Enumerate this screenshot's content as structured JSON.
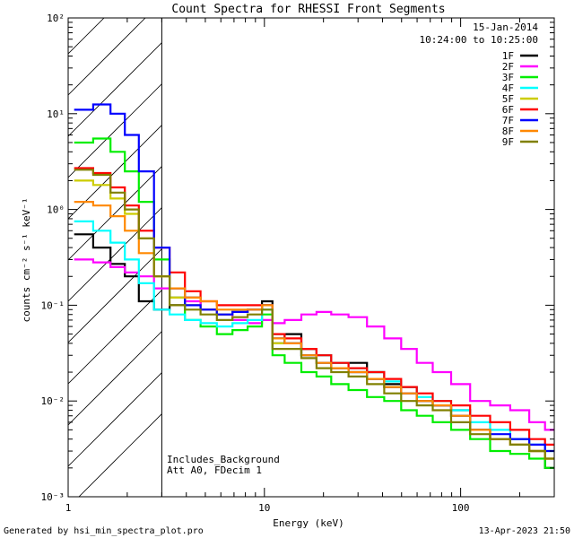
{
  "chart_data": {
    "type": "line",
    "title": "Count Spectra for RHESSI Front Segments",
    "xlabel": "Energy (keV)",
    "ylabel": "counts cm⁻² s⁻¹ keV⁻¹",
    "xscale": "log",
    "yscale": "log",
    "xlim": [
      1,
      300
    ],
    "ylim": [
      0.001,
      100
    ],
    "x_ticks": [
      {
        "value": 1,
        "label": "1"
      },
      {
        "value": 10,
        "label": "10"
      },
      {
        "value": 100,
        "label": "100"
      }
    ],
    "y_ticks": [
      {
        "value": 0.001,
        "label": "10⁻³"
      },
      {
        "value": 0.01,
        "label": "10⁻²"
      },
      {
        "value": 0.1,
        "label": "10⁻¹"
      },
      {
        "value": 1,
        "label": "10⁰"
      },
      {
        "value": 10,
        "label": "10¹"
      },
      {
        "value": 100,
        "label": "10²"
      }
    ],
    "excluded_region_xmax": 3,
    "date": "15-Jan-2014",
    "time_range": "10:24:00 to 10:25:00",
    "annotations": [
      "Includes_Background",
      "Att A0, FDecim 1"
    ],
    "legend_position": "top-right",
    "footer_left": "Generated by hsi_min_spectra_plot.pro",
    "footer_right": "13-Apr-2023 21:50",
    "x": [
      1.2,
      1.5,
      1.8,
      2.1,
      2.5,
      3.0,
      3.6,
      4.3,
      5.2,
      6.3,
      7.5,
      9.0,
      10.5,
      11.5,
      14,
      17,
      20,
      24,
      30,
      37,
      45,
      55,
      65,
      80,
      100,
      125,
      160,
      200,
      250,
      290
    ],
    "series": [
      {
        "name": "1F",
        "color": "#000000",
        "values": [
          0.55,
          0.4,
          0.27,
          0.2,
          0.11,
          0.09,
          0.1,
          0.12,
          0.09,
          0.08,
          0.085,
          0.09,
          0.11,
          0.04,
          0.05,
          0.035,
          0.03,
          0.025,
          0.025,
          0.02,
          0.015,
          0.014,
          0.01,
          0.009,
          0.008,
          0.005,
          0.004,
          0.004,
          0.003,
          0.002
        ]
      },
      {
        "name": "2F",
        "color": "#ff00ff",
        "values": [
          0.3,
          0.28,
          0.25,
          0.22,
          0.2,
          0.15,
          0.12,
          0.11,
          0.09,
          0.08,
          0.07,
          0.065,
          0.07,
          0.065,
          0.07,
          0.08,
          0.085,
          0.08,
          0.075,
          0.06,
          0.045,
          0.035,
          0.025,
          0.02,
          0.015,
          0.01,
          0.009,
          0.008,
          0.006,
          0.005
        ]
      },
      {
        "name": "3F",
        "color": "#00ee00",
        "values": [
          5.0,
          5.5,
          4.0,
          2.5,
          1.2,
          0.3,
          0.12,
          0.07,
          0.06,
          0.05,
          0.055,
          0.06,
          0.08,
          0.03,
          0.025,
          0.02,
          0.018,
          0.015,
          0.013,
          0.011,
          0.01,
          0.008,
          0.007,
          0.006,
          0.005,
          0.004,
          0.003,
          0.0028,
          0.0025,
          0.002
        ]
      },
      {
        "name": "4F",
        "color": "#00ffff",
        "values": [
          0.75,
          0.6,
          0.45,
          0.3,
          0.17,
          0.09,
          0.08,
          0.07,
          0.065,
          0.06,
          0.065,
          0.07,
          0.09,
          0.05,
          0.04,
          0.03,
          0.03,
          0.025,
          0.022,
          0.02,
          0.016,
          0.014,
          0.011,
          0.01,
          0.008,
          0.006,
          0.005,
          0.004,
          0.0035,
          0.003
        ]
      },
      {
        "name": "5F",
        "color": "#cccc00",
        "values": [
          2.0,
          1.8,
          1.3,
          0.9,
          0.5,
          0.2,
          0.12,
          0.1,
          0.09,
          0.08,
          0.085,
          0.09,
          0.1,
          0.04,
          0.04,
          0.03,
          0.025,
          0.022,
          0.02,
          0.017,
          0.014,
          0.012,
          0.01,
          0.009,
          0.007,
          0.005,
          0.004,
          0.0035,
          0.003,
          0.0025
        ]
      },
      {
        "name": "6F",
        "color": "#ff0000",
        "values": [
          2.7,
          2.4,
          1.7,
          1.1,
          0.6,
          0.4,
          0.22,
          0.14,
          0.11,
          0.1,
          0.1,
          0.1,
          0.1,
          0.05,
          0.045,
          0.035,
          0.03,
          0.025,
          0.022,
          0.02,
          0.017,
          0.014,
          0.012,
          0.01,
          0.009,
          0.007,
          0.006,
          0.005,
          0.004,
          0.0035
        ]
      },
      {
        "name": "7F",
        "color": "#0000ff",
        "values": [
          11.0,
          12.5,
          10.0,
          6.0,
          2.5,
          0.4,
          0.15,
          0.1,
          0.09,
          0.08,
          0.085,
          0.09,
          0.1,
          0.045,
          0.04,
          0.03,
          0.025,
          0.022,
          0.02,
          0.017,
          0.014,
          0.012,
          0.01,
          0.009,
          0.007,
          0.005,
          0.0045,
          0.004,
          0.0035,
          0.003
        ]
      },
      {
        "name": "8F",
        "color": "#ff8800",
        "values": [
          1.2,
          1.1,
          0.85,
          0.6,
          0.35,
          0.2,
          0.15,
          0.12,
          0.11,
          0.09,
          0.09,
          0.09,
          0.1,
          0.045,
          0.04,
          0.03,
          0.025,
          0.022,
          0.02,
          0.017,
          0.014,
          0.012,
          0.01,
          0.009,
          0.007,
          0.005,
          0.004,
          0.0035,
          0.003,
          0.0025
        ]
      },
      {
        "name": "9F",
        "color": "#808000",
        "values": [
          2.6,
          2.3,
          1.5,
          1.0,
          0.5,
          0.2,
          0.1,
          0.09,
          0.08,
          0.07,
          0.075,
          0.08,
          0.09,
          0.035,
          0.035,
          0.028,
          0.022,
          0.02,
          0.018,
          0.015,
          0.012,
          0.01,
          0.009,
          0.008,
          0.006,
          0.0045,
          0.004,
          0.0035,
          0.003,
          0.0025
        ]
      }
    ]
  }
}
